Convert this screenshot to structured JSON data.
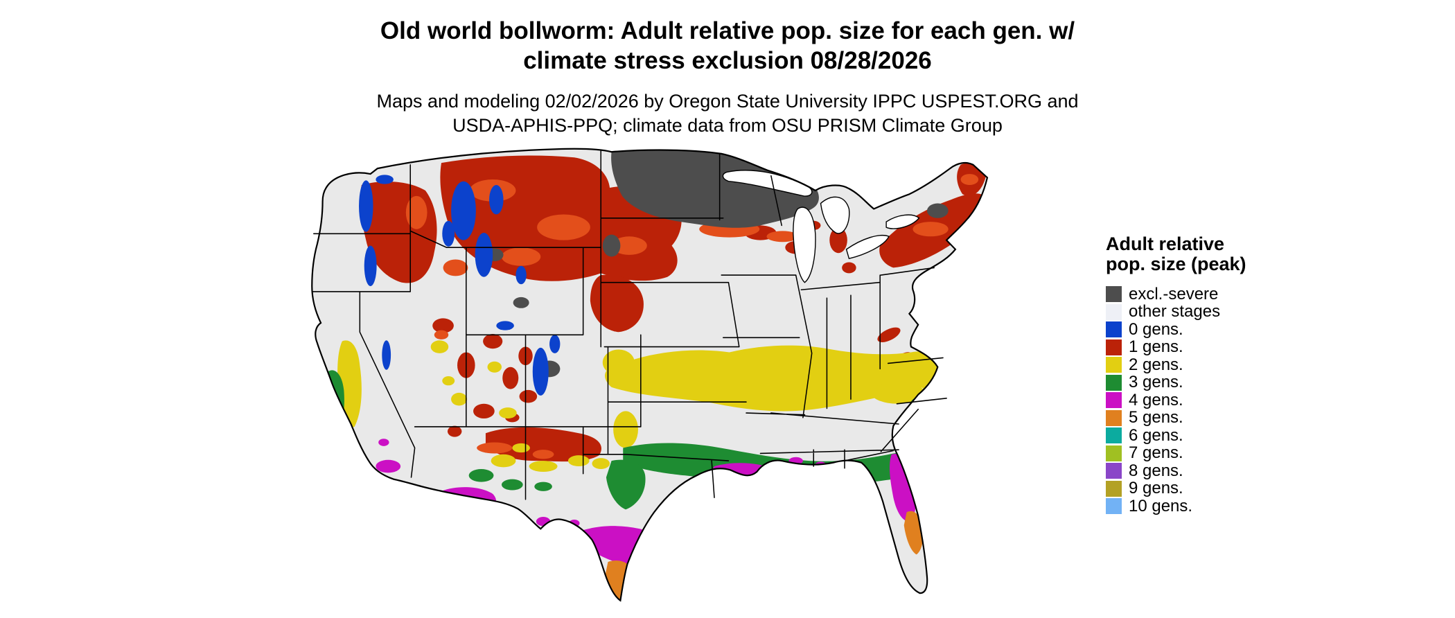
{
  "title": {
    "line1": "Old world bollworm: Adult relative pop. size for each gen. w/",
    "line2": "climate stress exclusion 08/28/2026"
  },
  "subtitle": {
    "line1": "Maps and modeling 02/02/2026 by Oregon State University IPPC USPEST.ORG and",
    "line2": "USDA-APHIS-PPQ; climate data from OSU PRISM Climate Group"
  },
  "legend": {
    "title": "Adult relative pop. size (peak)",
    "items": [
      {
        "label": "excl.-severe",
        "color_key": "excluded"
      },
      {
        "label": "other stages",
        "color_key": "other_stages"
      },
      {
        "label": "0 gens.",
        "color_key": "gen0"
      },
      {
        "label": "1 gens.",
        "color_key": "gen1"
      },
      {
        "label": "2 gens.",
        "color_key": "gen2"
      },
      {
        "label": "3 gens.",
        "color_key": "gen3"
      },
      {
        "label": "4 gens.",
        "color_key": "gen4"
      },
      {
        "label": "5 gens.",
        "color_key": "gen5"
      },
      {
        "label": "6 gens.",
        "color_key": "gen6"
      },
      {
        "label": "7 gens.",
        "color_key": "gen7"
      },
      {
        "label": "8 gens.",
        "color_key": "gen8"
      },
      {
        "label": "9 gens.",
        "color_key": "gen9"
      },
      {
        "label": "10 gens.",
        "color_key": "gen10"
      }
    ]
  },
  "map": {
    "description": "Continental US raster map of adult relative population size per generation"
  },
  "colors": {
    "excluded": "#4d4d4d",
    "other_stages": "#eef0f6",
    "gen0": "#0c42cc",
    "gen1": "#bb2208",
    "gen2": "#e2cf12",
    "gen3": "#1e8c32",
    "gen4": "#cb10c4",
    "gen5": "#e0801f",
    "gen6": "#0cab9f",
    "gen7": "#a0c022",
    "gen8": "#8a46c8",
    "gen9": "#b3a125",
    "gen10": "#72b2f5",
    "map_base": "#e9e9e9",
    "red_accent": "#e34f1b",
    "water": "#ffffff",
    "border": "#000000"
  }
}
